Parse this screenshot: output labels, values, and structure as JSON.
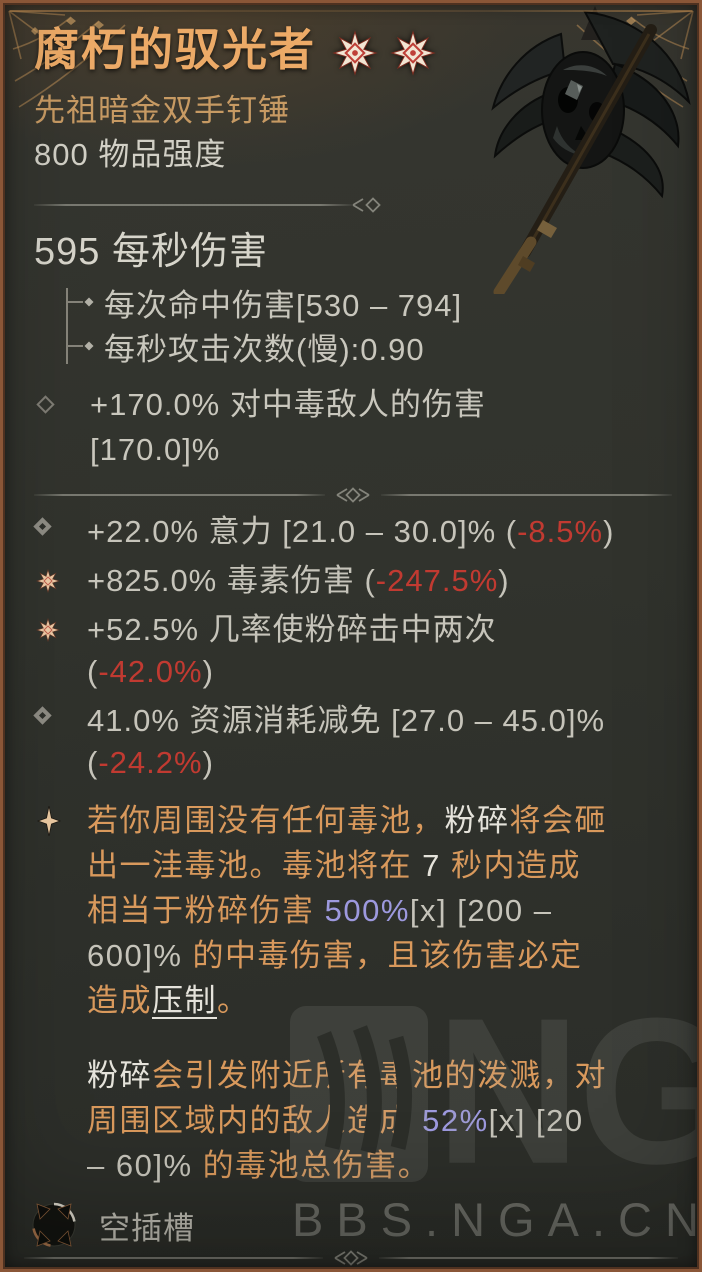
{
  "header": {
    "title": "腐朽的驭光者",
    "star_count": 2,
    "type_line": "先祖暗金双手钉锤",
    "item_power": "800 物品强度"
  },
  "weapon": {
    "dps_line": "595 每秒伤害",
    "stats": [
      "每次命中伤害[530 – 794]",
      "每秒攻击次数(慢):0.90"
    ],
    "implicit": "+170.0% 对中毒敌人的伤害 [170.0]%"
  },
  "affixes": [
    {
      "bullet": "diamond-icon",
      "pre": "+22.0% 意力 [21.0 – 30.0]% (",
      "delta": "-8.5%",
      "post": ")"
    },
    {
      "bullet": "eight-point-star-icon",
      "pre": "+825.0% 毒素伤害 (",
      "delta": "-247.5%",
      "post": ")"
    },
    {
      "bullet": "eight-point-star-icon",
      "pre": "+52.5% 几率使粉碎击中两次 (",
      "delta": "-42.0%",
      "post": ")"
    },
    {
      "bullet": "diamond-icon",
      "pre": "41.0% 资源消耗减免 [27.0 – 45.0]% (",
      "delta": "-24.2%",
      "post": ")"
    }
  ],
  "unique_effect": {
    "para1": [
      {
        "t": "若你周围没有任何毒池，",
        "c": "orange"
      },
      {
        "t": "粉碎",
        "c": "white"
      },
      {
        "t": "将会砸出一洼毒池。毒池将在 ",
        "c": "orange"
      },
      {
        "t": "7",
        "c": "white"
      },
      {
        "t": " 秒内造成相当于粉碎伤害 ",
        "c": "orange"
      },
      {
        "t": "500%",
        "c": "blue"
      },
      {
        "t": "[x] [200 – 600]% ",
        "c": "gray"
      },
      {
        "t": "的中毒伤害，且该伤害必定造成",
        "c": "orange"
      },
      {
        "t": "压制",
        "c": "white underline"
      },
      {
        "t": "。",
        "c": "orange"
      }
    ],
    "para2": [
      {
        "t": "粉碎",
        "c": "white"
      },
      {
        "t": "会引发附近所有毒池的泼溅，对周围区域内的敌人造成 ",
        "c": "orange"
      },
      {
        "t": "52%",
        "c": "blue"
      },
      {
        "t": "[x] [20 – 60]% ",
        "c": "gray"
      },
      {
        "t": "的毒池总伤害。",
        "c": "orange"
      }
    ]
  },
  "socket": {
    "label": "空插槽"
  },
  "watermark": {
    "logo": "NGA",
    "text": "BBS.NGA.CN"
  },
  "icons": {
    "rank_star": "eight-point-star-icon",
    "upgraded_affix": "eight-point-star-icon",
    "normal_affix": "diamond-icon",
    "unique_bullet": "four-point-sparkle-icon",
    "socket": "empty-socket-icon"
  },
  "colors": {
    "title": "#ECAA67",
    "type_line": "#C79A63",
    "body_text": "#C9C7BD",
    "red_delta": "#C13A31",
    "unique_orange": "#D9995C",
    "highlight_white": "#E5E3DB",
    "multiplier_blue": "#9D99DE",
    "frame_copper": "#8A5637",
    "background": "#31332D"
  }
}
